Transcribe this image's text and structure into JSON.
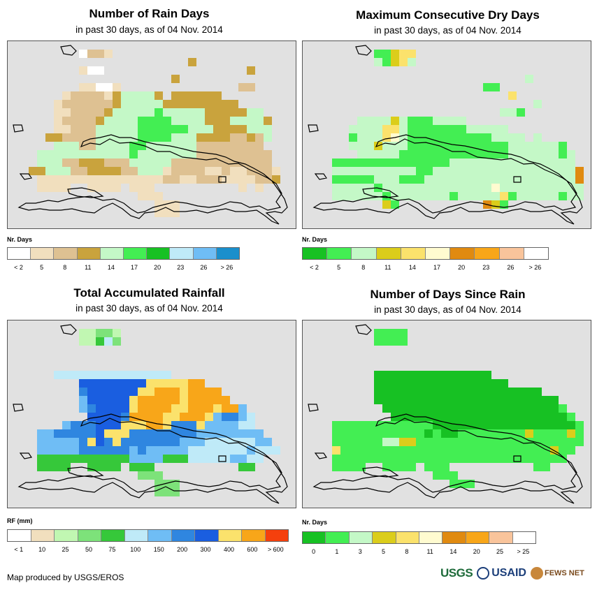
{
  "panels": [
    {
      "key": "rain_days",
      "title": "Number of Rain Days",
      "subtitle": "in past 30 days, as of 04 Nov. 2014",
      "legend_title": "Nr. Days",
      "legend_colors": [
        "#ffffff",
        "#f1dfbe",
        "#dec192",
        "#c9a33d",
        "#c4f8c7",
        "#43ee53",
        "#17c123",
        "#bfeaf8",
        "#6fbdf5",
        "#1a8fcc"
      ],
      "legend_labels": [
        "< 2",
        "5",
        "8",
        "11",
        "14",
        "17",
        "20",
        "23",
        "26",
        "> 26"
      ],
      "grid": [
        "..................................",
        "........ACCB......................",
        ".....................D............",
        "........BAA.................D.....",
        "...................D..............",
        "........BBAAB..............CC.....",
        "......BCCCCBDEEEED.DDDDDD.........",
        ".....BCCCCCCDEEEEEDDDDDDDDD.......",
        ".....BBCCCCDEEEEEFEEEEEDDDDDEE....",
        ".....BCCCCDEEEEFFFFEEEEDDDEEEED...",
        ".....BBCCCEEEEEFFFFFFEEEDDDDEEE...",
        "....DDCCCCEEEEEFFFFEEEDDDDCCDCE...",
        ".....EEECCEEEEFFEEEEEECCCCCCCC....",
        "...EEEEEEEEEEEFEEEEEEECCCCCCCCC...",
        "...EEECCDDDCCCEEEEECCCCCCCCCCCC...",
        "..DDEEECCDDDDCCEEEBCCCCBBCBBCCCB..",
        "...BBBBBBBBBBBBBBBCCBBCCCBBBBCCD..",
        "...BBBB..BBBB.BBB..........B.B....",
        "...............BBB................",
        ".................BBB..............",
        ".................BBB.............."
      ]
    },
    {
      "key": "dry_days",
      "title": "Maximum Consecutive Dry Days",
      "subtitle": "in past 30 days, as of 04 Nov. 2014",
      "legend_title": "Nr. Days",
      "legend_colors": [
        "#17c123",
        "#43ee53",
        "#c4f8c7",
        "#dbcd1b",
        "#fbe26c",
        "#fffbd0",
        "#e08a10",
        "#f8a619",
        "#f9c49b",
        "#ffffff"
      ],
      "legend_labels": [
        "< 2",
        "5",
        "8",
        "11",
        "14",
        "17",
        "20",
        "23",
        "26",
        "> 26"
      ],
      "grid": [
        "..................................",
        "........BBDEE.....................",
        "........CBDEC.....................",
        "..................................",
        "..........................C.......",
        ".....................BB...........",
        "........................E.........",
        "...........................C......",
        ".......................CCB........",
        "......CCCCDCBBBCCCC...............",
        ".....CCCCEECBBBBBBBCCCCC..........",
        ".....BCCCEFCBBBBBBBBBBCCCC.C......",
        ".....CCCDCCCBBBBBBBBBBBBCCCCCCB...",
        "......CCCCCBBBBBBBBBBBBBCCCCCCBC..",
        "...BBBBBBBBBBBBBBCCCCCCCCCCCCCCC..",
        "...CCCCCCCCCCBBCCCCCCCCCCCCCCCCCG.",
        "...BBBBBCCCBBBCCCCCCCCCCCCCCCCCCG.",
        "...CCCCCBCCCCCCCCCCCCCFCCCCCCCCCC.",
        "...CCCCCCBCCCCCCCBCCCCCEBCCCCCBCC.",
        ".........DB..........GDB.........."
      ]
    },
    {
      "key": "rainfall",
      "title": "Total Accumulated Rainfall",
      "subtitle": "in past 30 days, as of 04 Nov. 2014",
      "legend_title": "RF (mm)",
      "legend_colors": [
        "#ffffff",
        "#f1dfbe",
        "#c1f7b2",
        "#7de27a",
        "#36c83a",
        "#bfeaf8",
        "#6fbdf5",
        "#2f86e0",
        "#1a5ee0",
        "#fbe26c",
        "#f8a619",
        "#f5400d"
      ],
      "legend_labels": [
        "< 1",
        "10",
        "25",
        "50",
        "75",
        "100",
        "150",
        "200",
        "300",
        "400",
        "600",
        "> 600"
      ],
      "grid": [
        "..................................",
        "........CCDDC.....................",
        "........CCEFD.....................",
        "..................................",
        "..................................",
        "..................................",
        ".....FFFFFFFFFFFFFF...............",
        "........IIIIIIIIJJJJJKK...........",
        "........HIIIIIIJJKKKJKKKK.........",
        "........GIIIIIJKKKKKJKKKKK........",
        "........GHIIIIJKKKKJJKKKJKKG......",
        ".........IIIIHKKKKJJKKKJGHHGF.....",
        "......GHHHIIIJJJKKJHHHJGGGGFF.....",
        "...GGHHHHHIJJJHHHHHHHHGGGGGGGG....",
        "...GGGGGHJIHJHHHHHHHGGGFFFFFFGG...",
        "...GGGGGHHHHHHGHGGGGGFFFFFFFGFFF..",
        "...EEEEEEEEEEEGGGGEEEFFFFFGGFF....",
        "...EEEE..EEEE.EEE..........EE.....",
        "...............DDD................",
        ".................DDD..............",
        ".................DDD.............."
      ]
    },
    {
      "key": "since_rain",
      "title": "Number of Days Since Rain",
      "subtitle": "in past 30 days, as of 04 Nov. 2014",
      "legend_title": "Nr. Days",
      "legend_colors": [
        "#17c123",
        "#43ee53",
        "#c4f8c7",
        "#dbcd1b",
        "#fbe26c",
        "#fffbd0",
        "#e08a10",
        "#f8a619",
        "#f9c49b",
        "#ffffff"
      ],
      "legend_labels": [
        "0",
        "1",
        "3",
        "5",
        "8",
        "11",
        "14",
        "20",
        "25",
        "> 25"
      ],
      "grid": [
        "..................................",
        "........BBBB......................",
        "........BBBB......................",
        "..................................",
        "..................................",
        "..................................",
        "........AAAAAAAAAAAAAA............",
        "........AAAAAAAAAAAAAAAA..........",
        "........AAAAAAAAAAAAAAAAAAAA......",
        "........AAAAAAAAAAAAAAAAAAAAAA....",
        ".........AAAAAAAAAAAAAAAAAAAAAB...",
        "..........AAAAAAAAAAAAAAAAAAAAAB..",
        "...BBBBBBBBBBBBAAAAAAAAAAAAAAAAAB.",
        "...BBBBBBBBBBBABAABBBBBBBBDBBBBDB.",
        "...BBBBBBCCDDBBBBBBBBBBBBBBBBBBBB.",
        "...EBBBBBBBBBBBBBBBBBBBBBBBBBDBB..",
        "...BBBBBBBBBBBBBBBBBBBBBBBBBBBB...",
        "...BBBB..BBBB.BBB..........BB.....",
        "...............BBB................",
        ".................BBB..............",
        "................................."
      ]
    }
  ],
  "credit": "Map produced by USGS/EROS",
  "logos": {
    "usgs": "USGS",
    "usaid": "USAID",
    "fews": "FEWS NET"
  }
}
